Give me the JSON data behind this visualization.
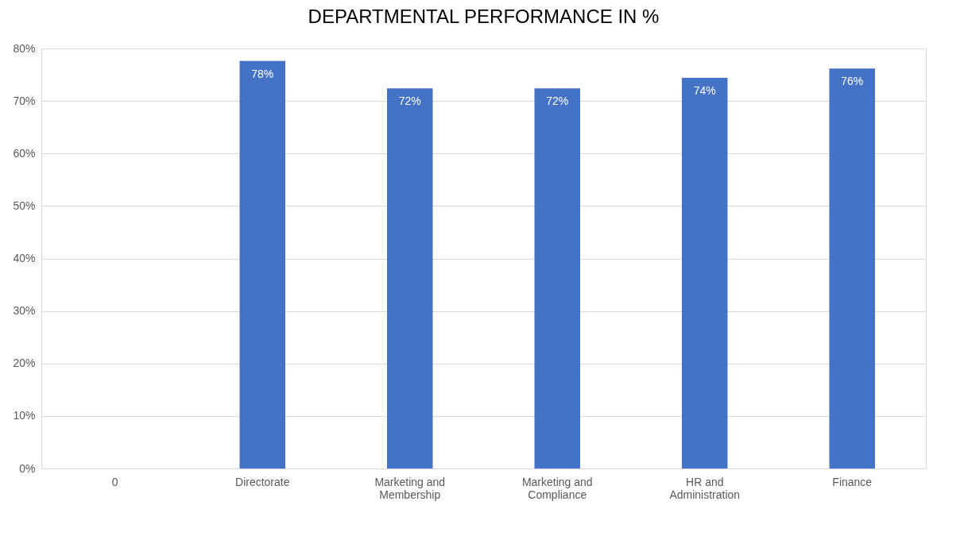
{
  "chart_data": {
    "type": "bar",
    "title": "DEPARTMENTAL PERFORMANCE IN %",
    "categories": [
      "0",
      "Directorate",
      "Marketing and Membership",
      "Marketing and Compliance",
      "HR and Administration",
      "Finance"
    ],
    "values": [
      null,
      77.6,
      72.4,
      72.4,
      74.4,
      76.2
    ],
    "value_labels": [
      null,
      "78%",
      "72%",
      "72%",
      "74%",
      "76%"
    ],
    "color": "#4472c4",
    "ylim": [
      0,
      80
    ],
    "yticks": [
      {
        "value": 0,
        "label": "0%"
      },
      {
        "value": 10,
        "label": "10%"
      },
      {
        "value": 20,
        "label": "20%"
      },
      {
        "value": 30,
        "label": "30%"
      },
      {
        "value": 40,
        "label": "40%"
      },
      {
        "value": 50,
        "label": "50%"
      },
      {
        "value": 60,
        "label": "60%"
      },
      {
        "value": 70,
        "label": "70%"
      },
      {
        "value": 80,
        "label": "80%"
      }
    ],
    "grid": "y"
  }
}
